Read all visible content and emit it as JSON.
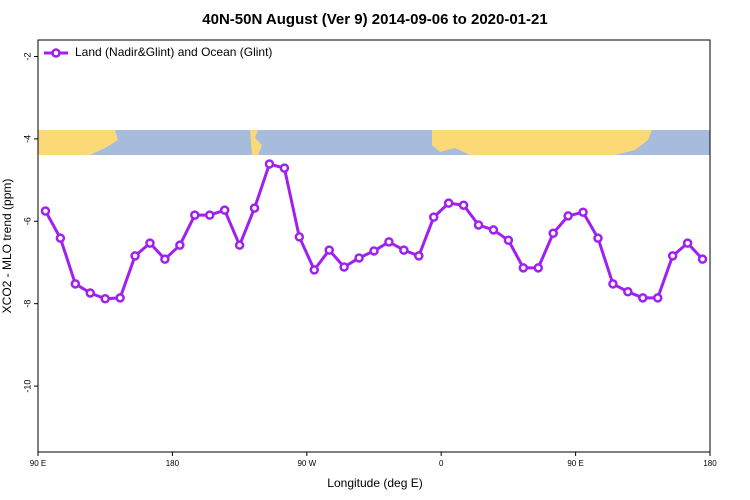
{
  "chart_data": {
    "type": "line",
    "title": "40N-50N August (Ver 9)   2014-09-06 to 2020-01-21",
    "x_label": "Longitude (deg E)",
    "y_label": "XCO2 - MLO trend (ppm)",
    "x": [
      95,
      105,
      115,
      125,
      135,
      145,
      155,
      165,
      175,
      185,
      195,
      205,
      215,
      225,
      235,
      245,
      255,
      265,
      275,
      285,
      295,
      305,
      315,
      325,
      335,
      345,
      355,
      365,
      375,
      385,
      395,
      405,
      415,
      425,
      435,
      445,
      455,
      465,
      475,
      485,
      495,
      505,
      515,
      525,
      535
    ],
    "series": [
      {
        "name": "Land (Nadir&Glint) and Ocean (Glint)",
        "color": "#a020f0",
        "values": [
          -5.75,
          -6.41,
          -7.52,
          -7.74,
          -7.88,
          -7.86,
          -6.84,
          -6.53,
          -6.92,
          -6.58,
          -5.85,
          -5.85,
          -5.73,
          -6.58,
          -5.68,
          -4.61,
          -4.71,
          -6.38,
          -7.18,
          -6.7,
          -7.11,
          -6.89,
          -6.72,
          -6.5,
          -6.7,
          -6.84,
          -5.9,
          -5.56,
          -5.61,
          -6.09,
          -6.21,
          -6.46,
          -7.13,
          -7.13,
          -6.29,
          -5.87,
          -5.78,
          -6.41,
          -7.52,
          -7.71,
          -7.86,
          -7.86,
          -6.84,
          -6.53,
          -6.92
        ]
      }
    ],
    "xlim": [
      90,
      540
    ],
    "xticks": [
      {
        "value": 90,
        "label": "90 E"
      },
      {
        "value": 180,
        "label": "180"
      },
      {
        "value": 270,
        "label": "90 W"
      },
      {
        "value": 360,
        "label": "0"
      },
      {
        "value": 450,
        "label": "90 E"
      },
      {
        "value": 540,
        "label": "180"
      }
    ],
    "ylim": [
      -11.6,
      -1.6
    ],
    "yticks": [
      -2,
      -4,
      -6,
      -8,
      -10
    ],
    "legend": "top-left"
  }
}
